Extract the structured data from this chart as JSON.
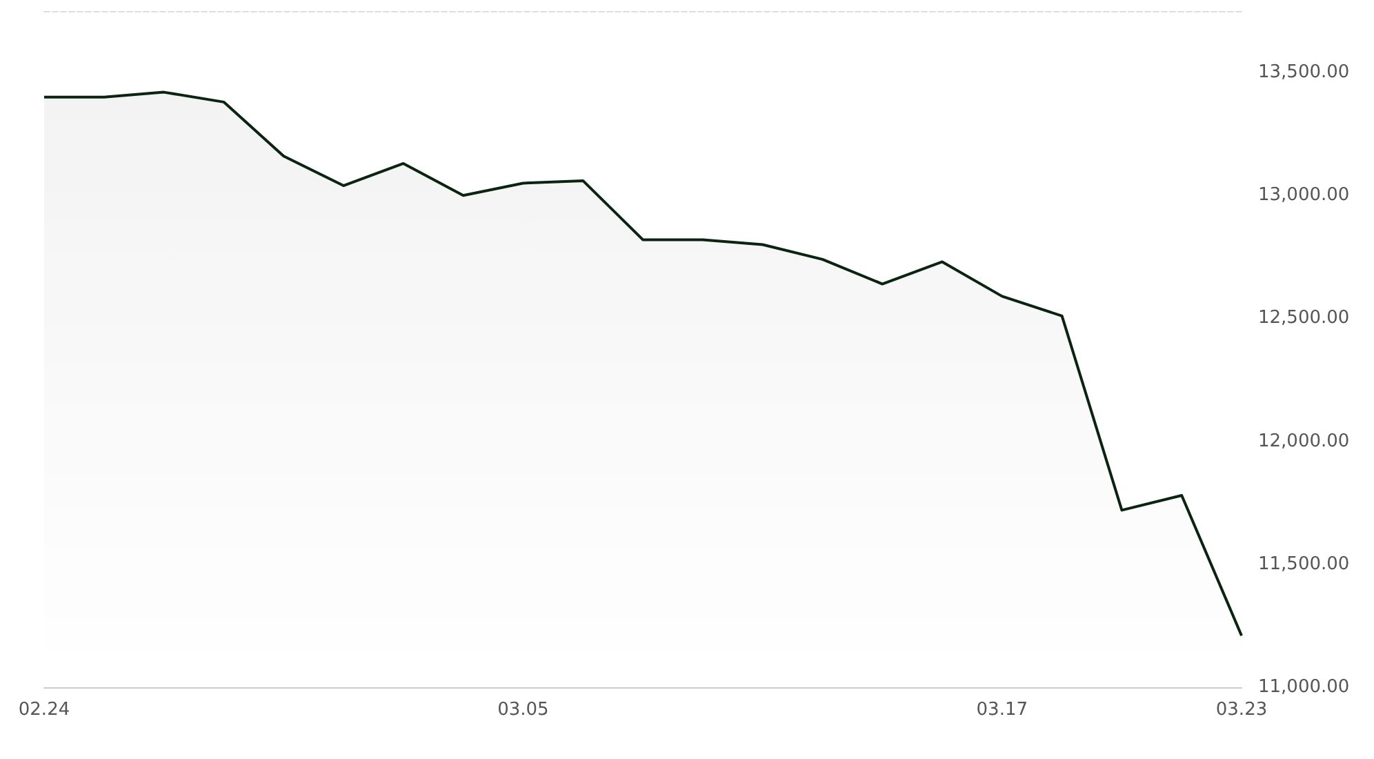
{
  "chart_data": {
    "type": "area",
    "categories": [
      "02.24",
      null,
      null,
      null,
      null,
      null,
      null,
      null,
      "03.05",
      null,
      null,
      null,
      null,
      null,
      null,
      null,
      "03.17",
      null,
      null,
      null,
      "03.23"
    ],
    "series": [
      {
        "color": "#0b2412",
        "values": [
          13400,
          13400,
          13420,
          13380,
          13160,
          13040,
          13130,
          13000,
          13050,
          13060,
          12820,
          12820,
          12800,
          12740,
          12640,
          12730,
          12590,
          12510,
          11720,
          11780,
          11210
        ]
      }
    ],
    "ylim": [
      11000,
      13750
    ],
    "yticks": [
      {
        "value": 11000,
        "label": "11,000.00"
      },
      {
        "value": 11500,
        "label": "11,500.00"
      },
      {
        "value": 12000,
        "label": "12,000.00"
      },
      {
        "value": 12500,
        "label": "12,500.00"
      },
      {
        "value": 13000,
        "label": "13,000.00"
      },
      {
        "value": 13500,
        "label": "13,500.00"
      }
    ],
    "grid": false
  }
}
